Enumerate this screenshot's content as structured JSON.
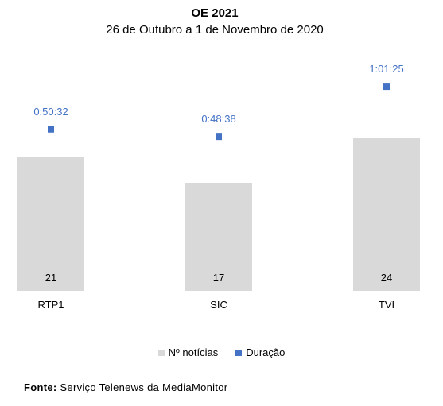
{
  "chart_data": {
    "type": "bar",
    "title": "OE 2021",
    "subtitle": "26 de Outubro a 1 de Novembro de 2020",
    "categories": [
      "RTP1",
      "SIC",
      "TVI"
    ],
    "series": [
      {
        "name": "Nº notícias",
        "type": "bar",
        "values": [
          21,
          17,
          24
        ],
        "color": "#d9d9d9"
      },
      {
        "name": "Duração",
        "type": "marker",
        "values": [
          "0:50:32",
          "0:48:38",
          "1:01:25"
        ],
        "seconds": [
          3032,
          2918,
          3685
        ],
        "color": "#4472c4"
      }
    ],
    "grid": false,
    "legend_position": "bottom"
  },
  "footer": {
    "label": "Fonte",
    "sep": ":",
    "text": " Serviço Telenews da MediaMonitor"
  }
}
